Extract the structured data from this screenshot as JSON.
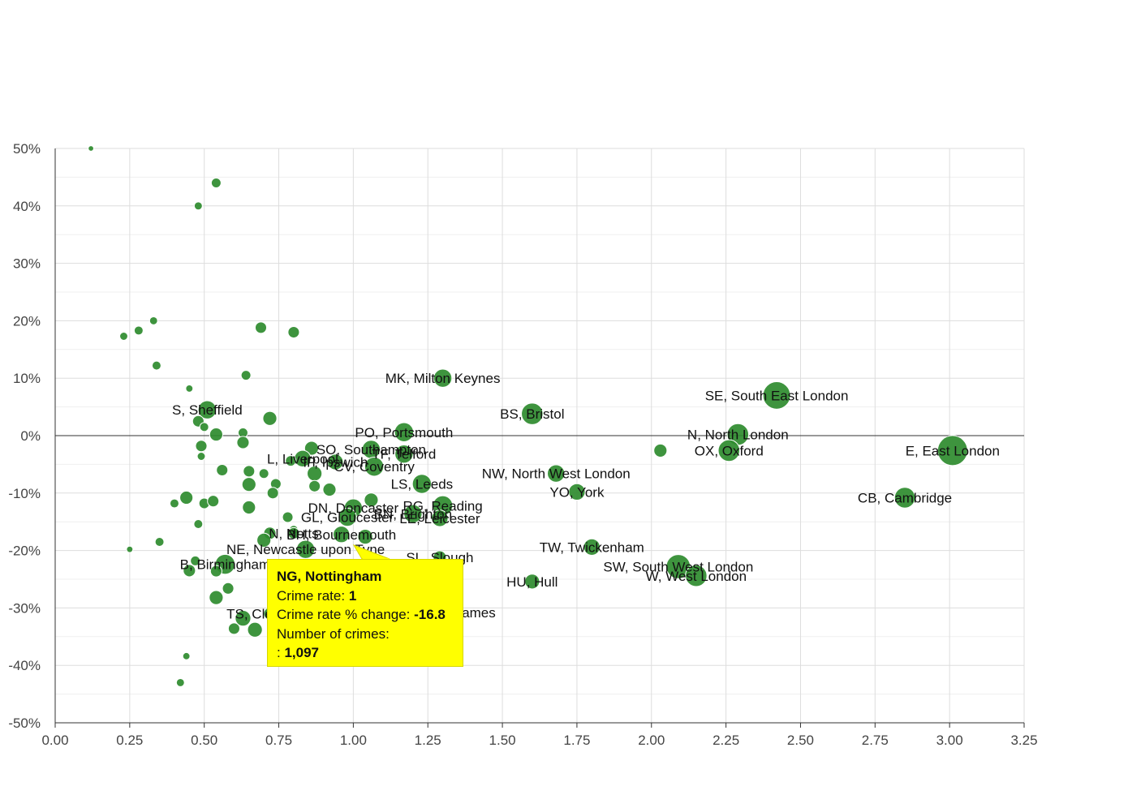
{
  "chart_data": {
    "type": "scatter",
    "subtype": "bubble",
    "x_ticks": [
      "0.00",
      "0.25",
      "0.50",
      "0.75",
      "1.00",
      "1.25",
      "1.50",
      "1.75",
      "2.00",
      "2.25",
      "2.50",
      "2.75",
      "3.00",
      "3.25"
    ],
    "y_ticks": [
      "50%",
      "40%",
      "30%",
      "20%",
      "10%",
      "0%",
      "-10%",
      "-20%",
      "-30%",
      "-40%",
      "-50%"
    ],
    "xlim": [
      0,
      3.25
    ],
    "ylim": [
      -50,
      50
    ],
    "grid": true,
    "colors": {
      "bubble_fill": "#2e8b2e",
      "bubble_stroke": "#ffffff",
      "grid": "#dddddd",
      "zero_line": "#333333",
      "tooltip_bg": "#ffff00"
    },
    "points": [
      {
        "x": 0.12,
        "y": 50,
        "s": 0.5,
        "label": ""
      },
      {
        "x": 0.54,
        "y": 44,
        "s": 1,
        "label": ""
      },
      {
        "x": 0.48,
        "y": 40,
        "s": 0.8,
        "label": ""
      },
      {
        "x": 0.23,
        "y": 17.3,
        "s": 0.8,
        "label": ""
      },
      {
        "x": 0.28,
        "y": 18.3,
        "s": 0.9,
        "label": ""
      },
      {
        "x": 0.33,
        "y": 20,
        "s": 0.8,
        "label": ""
      },
      {
        "x": 0.34,
        "y": 12.2,
        "s": 0.9,
        "label": ""
      },
      {
        "x": 0.45,
        "y": 8.2,
        "s": 0.7,
        "label": ""
      },
      {
        "x": 0.69,
        "y": 18.8,
        "s": 1.2,
        "label": ""
      },
      {
        "x": 0.8,
        "y": 18,
        "s": 1.2,
        "label": ""
      },
      {
        "x": 0.64,
        "y": 10.5,
        "s": 1,
        "label": ""
      },
      {
        "x": 1.3,
        "y": 10,
        "s": 2,
        "label": "MK, Milton Keynes"
      },
      {
        "x": 0.51,
        "y": 4.5,
        "s": 2,
        "label": "S, Sheffield"
      },
      {
        "x": 0.48,
        "y": 2.5,
        "s": 1.2,
        "label": ""
      },
      {
        "x": 0.5,
        "y": 1.5,
        "s": 0.9,
        "label": ""
      },
      {
        "x": 0.54,
        "y": 0.2,
        "s": 1.4,
        "label": ""
      },
      {
        "x": 0.63,
        "y": 0.5,
        "s": 1,
        "label": ""
      },
      {
        "x": 0.63,
        "y": -1.2,
        "s": 1.3,
        "label": ""
      },
      {
        "x": 0.72,
        "y": 3,
        "s": 1.5,
        "label": ""
      },
      {
        "x": 0.49,
        "y": -1.8,
        "s": 1.2,
        "label": ""
      },
      {
        "x": 0.49,
        "y": -3.6,
        "s": 0.8,
        "label": ""
      },
      {
        "x": 0.56,
        "y": -6,
        "s": 1.2,
        "label": ""
      },
      {
        "x": 0.65,
        "y": -6.2,
        "s": 1.2,
        "label": ""
      },
      {
        "x": 0.7,
        "y": -6.6,
        "s": 1,
        "label": ""
      },
      {
        "x": 0.65,
        "y": -8.5,
        "s": 1.5,
        "label": ""
      },
      {
        "x": 0.74,
        "y": -8.4,
        "s": 1.1,
        "label": ""
      },
      {
        "x": 0.73,
        "y": -10,
        "s": 1.2,
        "label": ""
      },
      {
        "x": 0.44,
        "y": -10.8,
        "s": 1.4,
        "label": ""
      },
      {
        "x": 0.4,
        "y": -11.8,
        "s": 0.9,
        "label": ""
      },
      {
        "x": 0.5,
        "y": -11.8,
        "s": 1.1,
        "label": ""
      },
      {
        "x": 0.53,
        "y": -11.4,
        "s": 1.2,
        "label": ""
      },
      {
        "x": 0.65,
        "y": -12.5,
        "s": 1.4,
        "label": ""
      },
      {
        "x": 0.48,
        "y": -15.4,
        "s": 0.9,
        "label": ""
      },
      {
        "x": 0.35,
        "y": -18.5,
        "s": 0.9,
        "label": ""
      },
      {
        "x": 0.25,
        "y": -19.8,
        "s": 0.6,
        "label": ""
      },
      {
        "x": 0.47,
        "y": -21.8,
        "s": 1,
        "label": ""
      },
      {
        "x": 0.45,
        "y": -23.5,
        "s": 1.3,
        "label": ""
      },
      {
        "x": 0.57,
        "y": -22.4,
        "s": 2.2,
        "label": "B, Birmingham"
      },
      {
        "x": 0.54,
        "y": -23.6,
        "s": 1.2,
        "label": ""
      },
      {
        "x": 0.58,
        "y": -26.6,
        "s": 1.2,
        "label": ""
      },
      {
        "x": 0.54,
        "y": -28.2,
        "s": 1.5,
        "label": ""
      },
      {
        "x": 0.63,
        "y": -31.8,
        "s": 1.7,
        "label": ""
      },
      {
        "x": 0.6,
        "y": -33.6,
        "s": 1.2,
        "label": ""
      },
      {
        "x": 0.67,
        "y": -33.8,
        "s": 1.6,
        "label": ""
      },
      {
        "x": 0.72,
        "y": -31,
        "s": 1.3,
        "label": "TS, Cleveland"
      },
      {
        "x": 0.44,
        "y": -38.4,
        "s": 0.7,
        "label": ""
      },
      {
        "x": 0.42,
        "y": -43,
        "s": 0.8,
        "label": ""
      },
      {
        "x": 0.72,
        "y": -17,
        "s": 1.3,
        "label": ""
      },
      {
        "x": 0.7,
        "y": -18.2,
        "s": 1.5,
        "label": ""
      },
      {
        "x": 0.78,
        "y": -14.2,
        "s": 1.1,
        "label": ""
      },
      {
        "x": 0.8,
        "y": -16.4,
        "s": 0.9,
        "label": ""
      },
      {
        "x": 0.8,
        "y": -17,
        "s": 1.2,
        "label": "N, Notts"
      },
      {
        "x": 0.84,
        "y": -19.8,
        "s": 2,
        "label": "NE, Newcastle upon Tyne"
      },
      {
        "x": 0.86,
        "y": -2.2,
        "s": 1.5,
        "label": ""
      },
      {
        "x": 0.83,
        "y": -4,
        "s": 1.8,
        "label": "L, Liverpool"
      },
      {
        "x": 0.79,
        "y": -4.4,
        "s": 1.1,
        "label": ""
      },
      {
        "x": 0.87,
        "y": -6.6,
        "s": 1.6,
        "label": ""
      },
      {
        "x": 0.87,
        "y": -8.8,
        "s": 1.2,
        "label": ""
      },
      {
        "x": 0.92,
        "y": -9.4,
        "s": 1.4,
        "label": ""
      },
      {
        "x": 0.94,
        "y": -4.6,
        "s": 1.7,
        "label": "IP, Ipswich"
      },
      {
        "x": 1.06,
        "y": -2.4,
        "s": 2,
        "label": "SO, Southampton"
      },
      {
        "x": 1.07,
        "y": -5.4,
        "s": 2.1,
        "label": "CV, Coventry"
      },
      {
        "x": 1.17,
        "y": -3.2,
        "s": 2,
        "label": "TF, Telford"
      },
      {
        "x": 1.17,
        "y": 0.6,
        "s": 2.1,
        "label": "PO, Portsmouth"
      },
      {
        "x": 1.23,
        "y": -8.4,
        "s": 2.1,
        "label": "LS, Leeds"
      },
      {
        "x": 1.06,
        "y": -11.2,
        "s": 1.5,
        "label": ""
      },
      {
        "x": 1.0,
        "y": -12.6,
        "s": 2,
        "label": "DN, Doncaster"
      },
      {
        "x": 1.3,
        "y": -12.2,
        "s": 2.2,
        "label": "RG, Reading"
      },
      {
        "x": 0.98,
        "y": -14.2,
        "s": 2,
        "label": "GL, Gloucester"
      },
      {
        "x": 1.2,
        "y": -13.6,
        "s": 2,
        "label": "BN, Brighton"
      },
      {
        "x": 1.29,
        "y": -14.4,
        "s": 1.8,
        "label": "LE, Leicester"
      },
      {
        "x": 0.96,
        "y": -17.2,
        "s": 1.8,
        "label": "BH, Bournemouth"
      },
      {
        "x": 1.04,
        "y": -17.6,
        "s": 1.6,
        "label": ""
      },
      {
        "x": 1.29,
        "y": -21.2,
        "s": 1.4,
        "label": "SL, Slough"
      },
      {
        "x": 1.2,
        "y": -30.8,
        "s": 1.5,
        "label": "KT, Kingston upon Thames"
      },
      {
        "x": 1.6,
        "y": 3.8,
        "s": 2.4,
        "label": "BS, Bristol"
      },
      {
        "x": 1.6,
        "y": -25.4,
        "s": 1.6,
        "label": "HU, Hull"
      },
      {
        "x": 1.68,
        "y": -6.6,
        "s": 1.9,
        "label": "NW, North West London"
      },
      {
        "x": 1.75,
        "y": -9.8,
        "s": 1.8,
        "label": "YO, York"
      },
      {
        "x": 1.8,
        "y": -19.4,
        "s": 1.8,
        "label": "TW, Twickenham"
      },
      {
        "x": 2.03,
        "y": -2.6,
        "s": 1.4,
        "label": ""
      },
      {
        "x": 2.09,
        "y": -22.8,
        "s": 2.7,
        "label": "SW, South West London"
      },
      {
        "x": 2.15,
        "y": -24.4,
        "s": 2.4,
        "label": "W, West London"
      },
      {
        "x": 2.29,
        "y": 0.2,
        "s": 2.4,
        "label": "N, North London"
      },
      {
        "x": 2.26,
        "y": -2.6,
        "s": 2.4,
        "label": "OX, Oxford"
      },
      {
        "x": 2.42,
        "y": 7,
        "s": 3.1,
        "label": "SE, South East London"
      },
      {
        "x": 2.85,
        "y": -10.8,
        "s": 2.3,
        "label": "CB, Cambridge"
      },
      {
        "x": 3.01,
        "y": -2.6,
        "s": 3.4,
        "label": "E, East London"
      }
    ],
    "tooltip": {
      "title": "NG, Nottingham",
      "rate_label": "Crime rate:",
      "rate_value": "1",
      "change_label": "Crime rate % change:",
      "change_value": "-16.8",
      "count_label": "Number of crimes:",
      "count_prefix": ":",
      "count_value": "1,097"
    }
  }
}
